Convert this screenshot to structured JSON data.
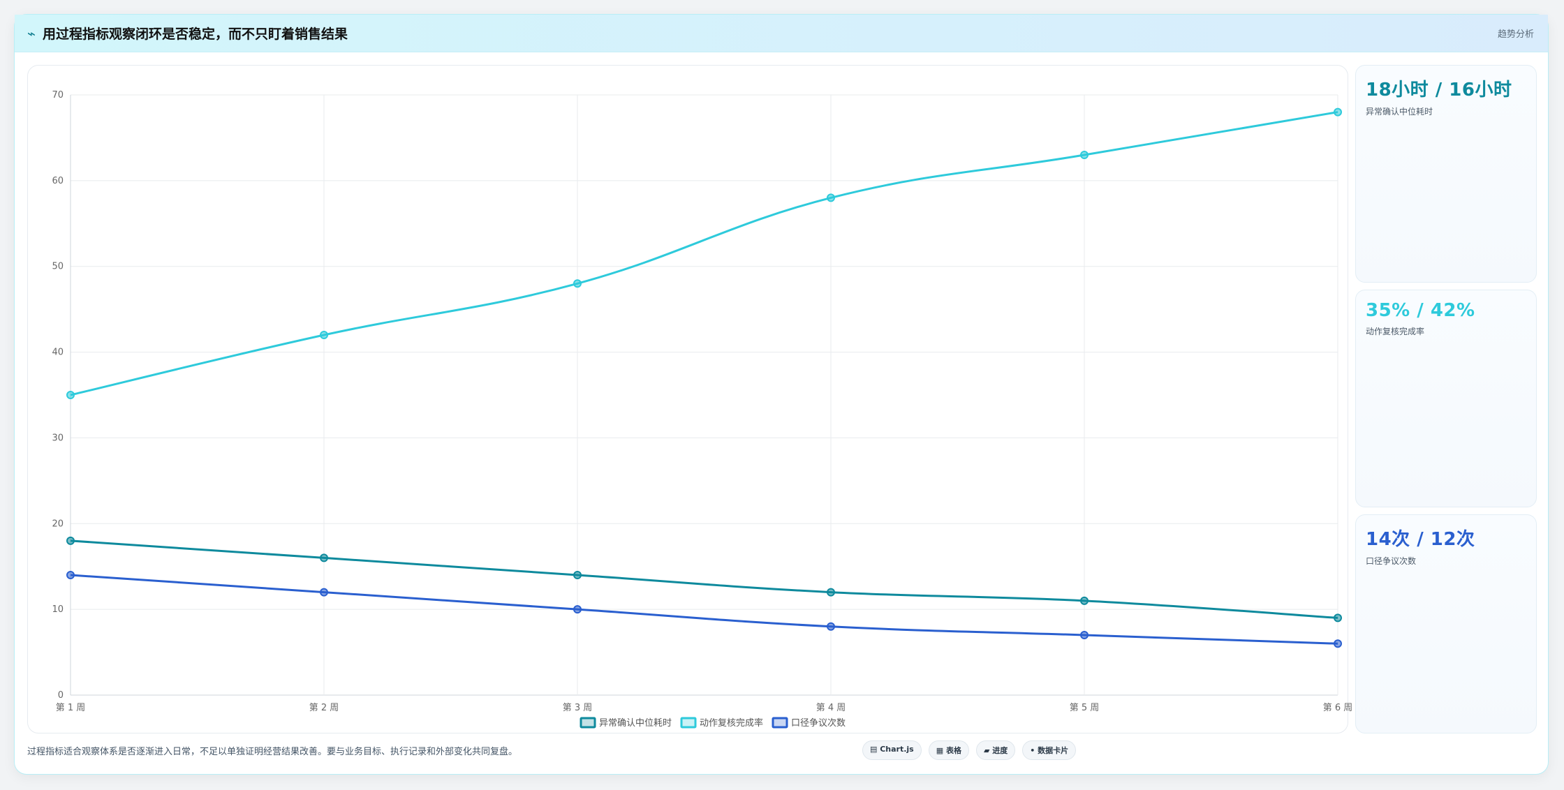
{
  "header": {
    "icon": "trend-line-icon",
    "title": "用过程指标观察闭环是否稳定，而不只盯着销售结果",
    "tag": "趋势分析"
  },
  "chart_data": {
    "type": "line",
    "categories": [
      "第 1 周",
      "第 2 周",
      "第 3 周",
      "第 4 周",
      "第 5 周",
      "第 6 周"
    ],
    "series": [
      {
        "name": "异常确认中位耗时",
        "values": [
          18,
          16,
          14,
          12,
          11,
          9
        ],
        "color": "#0e8a9d"
      },
      {
        "name": "动作复核完成率",
        "values": [
          35,
          42,
          48,
          58,
          63,
          68
        ],
        "color": "#2ecadb"
      },
      {
        "name": "口径争议次数",
        "values": [
          14,
          12,
          10,
          8,
          7,
          6
        ],
        "color": "#2a5fcf"
      }
    ],
    "yticks": [
      0,
      10,
      20,
      30,
      40,
      50,
      60,
      70
    ],
    "ylim": [
      0,
      70
    ],
    "grid": true,
    "legend_position": "bottom"
  },
  "kpis": [
    {
      "value": "18小时 / 16小时",
      "label": "异常确认中位耗时",
      "color": "#0e8a9d"
    },
    {
      "value": "35% / 42%",
      "label": "动作复核完成率",
      "color": "#2ecadb"
    },
    {
      "value": "14次 / 12次",
      "label": "口径争议次数",
      "color": "#2a5fcf"
    }
  ],
  "footer": {
    "note": "过程指标适合观察体系是否逐渐进入日常，不足以单独证明经营结果改善。要与业务目标、执行记录和外部变化共同复盘。",
    "chips": [
      "▤ Chart.js",
      "▦ 表格",
      "▰ 进度",
      "• 数据卡片"
    ]
  }
}
